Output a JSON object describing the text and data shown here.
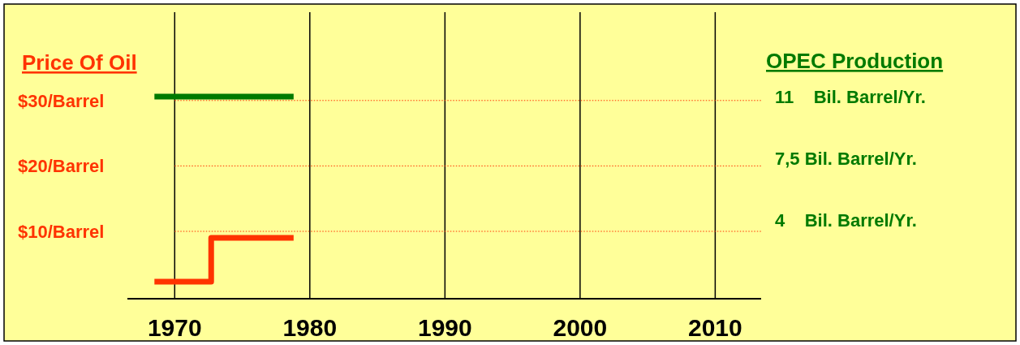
{
  "chart_data": {
    "type": "step",
    "ylabel": "Price Of Oil",
    "y2label": "OPEC Production",
    "xlim": [
      1966.5,
      2013.4
    ],
    "xticks": [
      1970,
      1980,
      1990,
      2000,
      2010
    ],
    "ylim": [
      -0.3,
      43.5
    ],
    "yticks": [
      {
        "value": 10,
        "label": "$10/Barrel"
      },
      {
        "value": 20,
        "label": "$20/Barrel"
      },
      {
        "value": 30,
        "label": "$30/Barrel"
      }
    ],
    "y2lim": [
      -0.5,
      15.8
    ],
    "y2ticks": [
      {
        "value": 4,
        "label": "4    Bil. Barrel/Yr."
      },
      {
        "value": 7.5,
        "label": "7,5 Bil. Barrel/Yr."
      },
      {
        "value": 11,
        "label": "11    Bil. Barrel/Yr."
      }
    ],
    "grid": "x",
    "ref_lines": [
      {
        "axis": "y",
        "value": 10,
        "color": "#ff3300",
        "line_style": "dotted"
      },
      {
        "axis": "y",
        "value": 20,
        "color": "#ff3300",
        "line_style": "dotted"
      },
      {
        "axis": "y",
        "value": 30,
        "color": "#ff3300",
        "line_style": "dotted"
      }
    ],
    "series": [
      {
        "color": "#ff3300",
        "x": [
          1968.5,
          1972.7,
          1978.8
        ],
        "values": [
          2.3,
          9,
          9
        ]
      },
      {
        "color": "#007a00",
        "axis": "y2",
        "x": [
          1968.5,
          1978.8
        ],
        "values": [
          11,
          11
        ]
      }
    ]
  }
}
